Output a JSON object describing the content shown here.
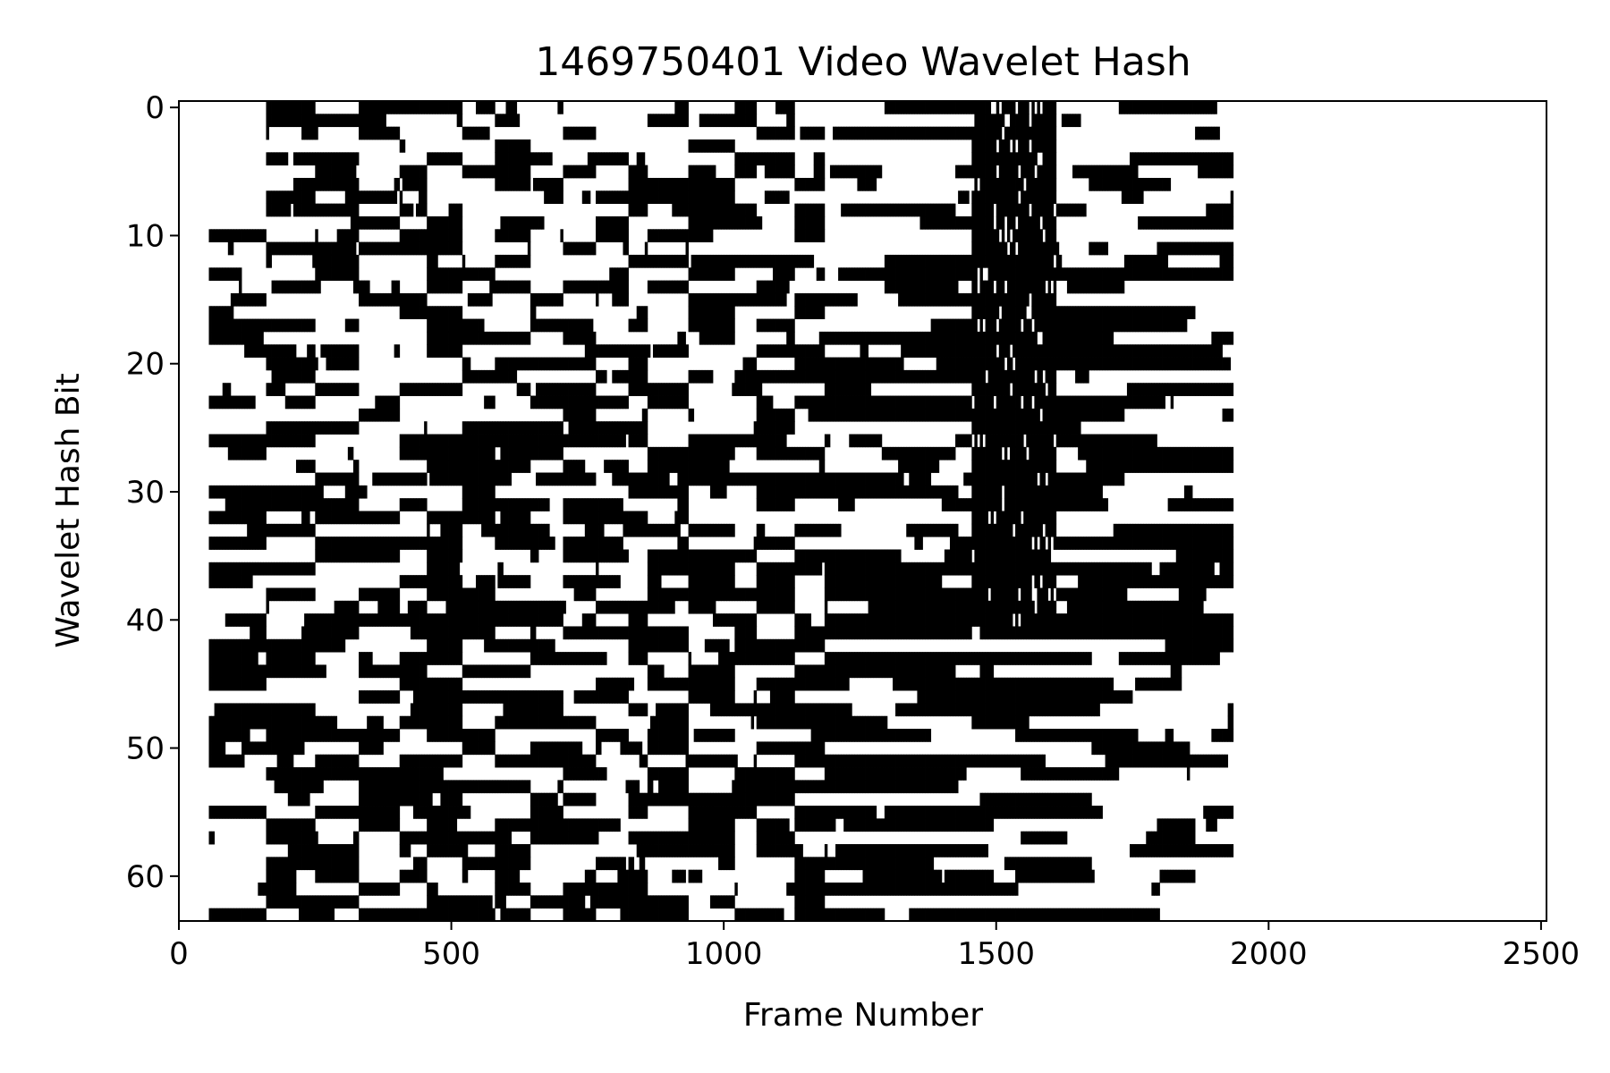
{
  "chart_data": {
    "type": "heatmap",
    "title": "1469750401 Video Wavelet Hash",
    "xlabel": "Frame Number",
    "ylabel": "Wavelet Hash Bit",
    "xlim": [
      0,
      2510
    ],
    "ylim": [
      63.5,
      -0.5
    ],
    "x_ticks": [
      0,
      500,
      1000,
      1500,
      2000,
      2500
    ],
    "y_ticks": [
      0,
      10,
      20,
      30,
      40,
      50,
      60
    ],
    "n_bits": 64,
    "frames_with_data": [
      55,
      1935
    ],
    "colormap": {
      "1": "#000000",
      "0": "#ffffff"
    },
    "grid": false,
    "legend": "none",
    "approximated_block_structure": {
      "segment_boundaries": [
        55,
        160,
        250,
        330,
        405,
        455,
        520,
        580,
        645,
        705,
        765,
        825,
        860,
        935,
        1020,
        1060,
        1130,
        1185,
        1935
      ],
      "dense_black_band": {
        "x": [
          1455,
          1610
        ],
        "bits": [
          0,
          40
        ]
      }
    }
  }
}
